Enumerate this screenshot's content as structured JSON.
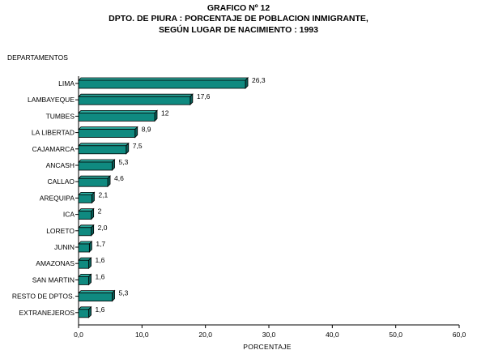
{
  "chart_data": {
    "type": "bar",
    "orientation": "horizontal",
    "title": [
      "GRAFICO  Nº 12",
      "DPTO. DE PIURA : PORCENTAJE DE POBLACION INMIGRANTE,",
      "SEGÚN LUGAR DE NACIMIENTO : 1993"
    ],
    "ylabel": "DEPARTAMENTOS",
    "xlabel": "PORCENTAJE",
    "categories": [
      "LIMA",
      "LAMBAYEQUE",
      "TUMBES",
      "LA LIBERTAD",
      "CAJAMARCA",
      "ANCASH",
      "CALLAO",
      "AREQUIPA",
      "ICA",
      "LORETO",
      "JUNIN",
      "AMAZONAS",
      "SAN MARTIN",
      "RESTO DE DPTOS.",
      "EXTRANEJEROS"
    ],
    "values": [
      26.3,
      17.6,
      12,
      8.9,
      7.5,
      5.3,
      4.6,
      2.1,
      2,
      2.0,
      1.7,
      1.6,
      1.6,
      5.3,
      1.6
    ],
    "value_labels": [
      "26,3",
      "17,6",
      "12",
      "8,9",
      "7,5",
      "5,3",
      "4,6",
      "2,1",
      "2",
      "2,0",
      "1,7",
      "1,6",
      "1,6",
      "5,3",
      "1,6"
    ],
    "xlim": [
      0,
      60
    ],
    "xticks": [
      "0,0",
      "10,0",
      "20,0",
      "30,0",
      "40,0",
      "50,0",
      "60,0"
    ],
    "grid": false,
    "legend": "none",
    "bar_color": "#0f8a80",
    "bar_side_color": "#0a5f59",
    "bar_top_color": "#2aa89c"
  }
}
